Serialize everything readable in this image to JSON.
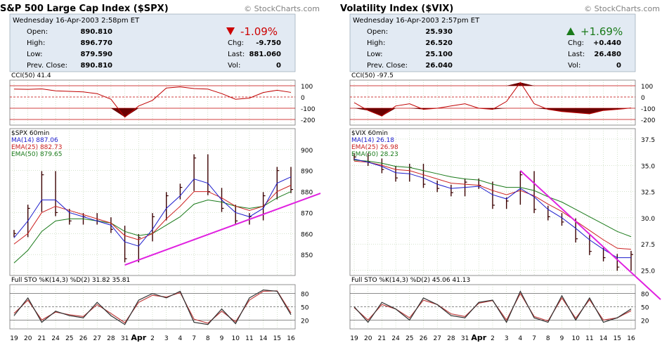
{
  "colors": {
    "background": "#ffffff",
    "quote_header": "#e2eaf3",
    "grid": "#a9c59a",
    "price_bar": "#3a0000",
    "cci_line": "#c00000",
    "cci_fill": "#6b0000",
    "ma14": "#1c1ccc",
    "ema25": "#cc2020",
    "ema50": "#1a7a1a",
    "trendline": "#e020e0",
    "sto_k": "#303030",
    "sto_d": "#c04040",
    "down": "#cc0000",
    "up": "#1a7a1a"
  },
  "charts": [
    {
      "title": "S&P 500 Large Cap Index ($SPX)",
      "copyright": "© StockCharts.com",
      "date": "Wednesday  16-Apr-2003  2:58pm ET",
      "quote": {
        "open_label": "Open:",
        "open": "890.810",
        "high_label": "High:",
        "high": "896.770",
        "low_label": "Low:",
        "low": "879.590",
        "prev_label": "Prev. Close:",
        "prev": "890.810",
        "change_pct": "-1.09%",
        "direction": "down",
        "chg_label": "Chg:",
        "chg": "-9.750",
        "last_label": "Last:",
        "last": "881.060",
        "vol_label": "Vol:",
        "vol": "0"
      },
      "cci_label": "CCI(50)  41.4",
      "cci_axis": [
        "100",
        "0",
        "-100",
        "-200"
      ],
      "price_legend": [
        "$SPX 60min",
        "MA(14) 887.06",
        "EMA(25) 882.73",
        "EMA(50) 879.65"
      ],
      "price_axis": [
        "900",
        "890",
        "880",
        "870",
        "860",
        "850"
      ],
      "sto_label": "Full STO %K(14,3) %D(2)  31.82  35.81",
      "sto_axis": [
        "80",
        "50",
        "20"
      ],
      "dates": [
        "19",
        "20",
        "21",
        "24",
        "25",
        "26",
        "27",
        "28",
        "31",
        "Apr",
        "2",
        "3",
        "4",
        "7",
        "8",
        "9",
        "10",
        "11",
        "14",
        "15",
        "16"
      ]
    },
    {
      "title": "Volatility Index ($VIX)",
      "copyright": "© StockCharts.com",
      "date": "Wednesday  16-Apr-2003  2:57pm ET",
      "quote": {
        "open_label": "Open:",
        "open": "25.930",
        "high_label": "High:",
        "high": "26.520",
        "low_label": "Low:",
        "low": "25.100",
        "prev_label": "Prev. Close:",
        "prev": "26.040",
        "change_pct": "+1.69%",
        "direction": "up",
        "chg_label": "Chg:",
        "chg": "+0.440",
        "last_label": "Last:",
        "last": "26.480",
        "vol_label": "Vol:",
        "vol": "0"
      },
      "cci_label": "CCI(50)  -97.5",
      "cci_axis": [
        "100",
        "0",
        "-100",
        "-200"
      ],
      "price_legend": [
        "$VIX 60min",
        "MA(14) 26.18",
        "EMA(25) 26.98",
        "EMA(50) 28.23"
      ],
      "price_axis": [
        "37.5",
        "35.0",
        "32.5",
        "30.0",
        "27.5",
        "25.0"
      ],
      "sto_label": "Full STO %K(14,3) %D(2)  45.06  41.13",
      "sto_axis": [
        "80",
        "50",
        "20"
      ],
      "dates": [
        "19",
        "20",
        "21",
        "24",
        "25",
        "26",
        "27",
        "28",
        "31",
        "Apr",
        "2",
        "3",
        "4",
        "7",
        "8",
        "9",
        "10",
        "11",
        "14",
        "15",
        "16"
      ]
    }
  ],
  "chart_data": [
    {
      "type": "line",
      "title": "S&P 500 Large Cap Index ($SPX)",
      "interval": "60min",
      "x_categories": [
        "19",
        "20",
        "21",
        "24",
        "25",
        "26",
        "27",
        "28",
        "31",
        "Apr",
        "2",
        "3",
        "4",
        "7",
        "8",
        "9",
        "10",
        "11",
        "14",
        "15",
        "16"
      ],
      "y_price_range": [
        840,
        910
      ],
      "price_close": [
        860,
        872,
        888,
        870,
        866,
        868,
        866,
        862,
        848,
        858,
        868,
        878,
        882,
        896,
        880,
        872,
        866,
        868,
        878,
        890,
        881
      ],
      "ma14": [
        858,
        866,
        876,
        876,
        870,
        868,
        866,
        864,
        856,
        854,
        862,
        872,
        878,
        886,
        884,
        876,
        870,
        868,
        872,
        884,
        887
      ],
      "ema25": [
        855,
        860,
        870,
        873,
        871,
        869,
        867,
        865,
        859,
        857,
        860,
        867,
        873,
        880,
        880,
        877,
        873,
        871,
        873,
        880,
        883
      ],
      "ema50": [
        846,
        852,
        861,
        866,
        867,
        867,
        866,
        865,
        861,
        859,
        860,
        864,
        868,
        874,
        876,
        875,
        873,
        872,
        873,
        877,
        880
      ],
      "cci_range": [
        -250,
        150
      ],
      "cci": [
        70,
        68,
        72,
        55,
        50,
        45,
        30,
        -20,
        -180,
        -80,
        -30,
        80,
        90,
        75,
        70,
        30,
        -20,
        -10,
        40,
        60,
        41
      ],
      "sto_range": [
        0,
        100
      ],
      "sto_k": [
        30,
        70,
        15,
        40,
        30,
        25,
        60,
        30,
        10,
        65,
        80,
        70,
        85,
        15,
        10,
        45,
        12,
        70,
        88,
        85,
        32
      ],
      "sto_d": [
        35,
        65,
        20,
        38,
        32,
        28,
        55,
        35,
        14,
        60,
        76,
        72,
        82,
        22,
        13,
        40,
        16,
        65,
        85,
        86,
        36
      ],
      "cci_levels": [
        100,
        0,
        -100,
        -200
      ],
      "sto_levels": [
        80,
        50,
        20
      ],
      "trendline": {
        "from": [
          "31",
          845
        ],
        "to": [
          "16",
          874
        ]
      }
    },
    {
      "type": "line",
      "title": "Volatility Index ($VIX)",
      "interval": "60min",
      "x_categories": [
        "19",
        "20",
        "21",
        "24",
        "25",
        "26",
        "27",
        "28",
        "31",
        "Apr",
        "2",
        "3",
        "4",
        "7",
        "8",
        "9",
        "10",
        "11",
        "14",
        "15",
        "16"
      ],
      "y_price_range": [
        24.5,
        38.5
      ],
      "price_close": [
        35.8,
        35.3,
        34.6,
        33.8,
        34.8,
        33.2,
        32.8,
        32.4,
        33.4,
        33.1,
        31.2,
        31.6,
        34.1,
        30.8,
        30.1,
        29.6,
        28.0,
        26.8,
        26.2,
        25.3,
        26.5
      ],
      "ma14": [
        35.6,
        35.3,
        34.9,
        34.3,
        34.2,
        33.8,
        33.2,
        32.8,
        32.9,
        33.0,
        32.2,
        31.8,
        32.8,
        32.0,
        30.8,
        30.0,
        29.0,
        27.9,
        27.0,
        26.2,
        26.2
      ],
      "ema25": [
        35.4,
        35.3,
        35.0,
        34.6,
        34.5,
        34.1,
        33.7,
        33.3,
        33.2,
        33.1,
        32.6,
        32.2,
        32.6,
        32.1,
        31.3,
        30.6,
        29.7,
        28.8,
        27.9,
        27.1,
        27.0
      ],
      "ema50": [
        35.5,
        35.4,
        35.2,
        34.9,
        34.8,
        34.5,
        34.2,
        33.9,
        33.7,
        33.6,
        33.2,
        32.9,
        32.9,
        32.6,
        32.0,
        31.5,
        30.8,
        30.1,
        29.4,
        28.7,
        28.2
      ],
      "cci_range": [
        -250,
        150
      ],
      "cci": [
        -50,
        -120,
        -170,
        -80,
        -60,
        -110,
        -100,
        -80,
        -60,
        -100,
        -110,
        -40,
        130,
        -60,
        -110,
        -130,
        -140,
        -150,
        -120,
        -110,
        -98
      ],
      "sto_range": [
        0,
        100
      ],
      "sto_k": [
        50,
        15,
        60,
        45,
        20,
        70,
        55,
        30,
        25,
        60,
        65,
        15,
        85,
        25,
        15,
        75,
        20,
        70,
        15,
        25,
        45
      ],
      "sto_d": [
        48,
        20,
        55,
        45,
        25,
        65,
        55,
        34,
        28,
        58,
        64,
        20,
        80,
        28,
        18,
        70,
        24,
        66,
        20,
        25,
        41
      ],
      "cci_levels": [
        100,
        0,
        -100,
        -200
      ],
      "sto_levels": [
        80,
        50,
        20
      ],
      "trendline": {
        "from": [
          "4",
          34.5
        ],
        "to": [
          "16",
          24.8
        ]
      }
    }
  ]
}
